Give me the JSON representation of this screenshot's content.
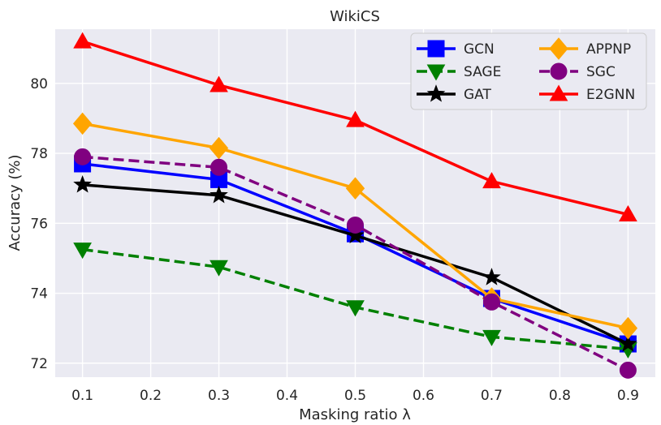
{
  "chart_data": {
    "type": "line",
    "title": "WikiCS",
    "xlabel": "Masking ratio λ",
    "ylabel": "Accuracy (%)",
    "xlim": [
      0.06,
      0.94
    ],
    "ylim": [
      71.6,
      81.55
    ],
    "x_ticks": [
      "0.1",
      "0.2",
      "0.3",
      "0.4",
      "0.5",
      "0.6",
      "0.7",
      "0.8",
      "0.9"
    ],
    "y_ticks": [
      "72",
      "74",
      "76",
      "78",
      "80"
    ],
    "grid": true,
    "legend_position": "top-right",
    "legend_columns": 2,
    "x": [
      0.1,
      0.3,
      0.5,
      0.7,
      0.9
    ],
    "series": [
      {
        "name": "GCN",
        "values": [
          77.7,
          77.25,
          75.7,
          73.85,
          72.55
        ],
        "color": "#0000ff",
        "marker": "square",
        "dash": "solid"
      },
      {
        "name": "SAGE",
        "values": [
          75.25,
          74.75,
          73.6,
          72.75,
          72.4
        ],
        "color": "#008000",
        "marker": "triangle-down",
        "dash": "dashed"
      },
      {
        "name": "GAT",
        "values": [
          77.1,
          76.8,
          75.65,
          74.45,
          72.55
        ],
        "color": "#000000",
        "marker": "star",
        "dash": "solid"
      },
      {
        "name": "APPNP",
        "values": [
          78.85,
          78.15,
          77.0,
          73.85,
          73.0
        ],
        "color": "#ffa500",
        "marker": "diamond",
        "dash": "solid"
      },
      {
        "name": "SGC",
        "values": [
          77.9,
          77.6,
          75.95,
          73.75,
          71.8
        ],
        "color": "#800080",
        "marker": "circle",
        "dash": "dashed"
      },
      {
        "name": "E2GNN",
        "values": [
          81.2,
          79.95,
          78.95,
          77.2,
          76.25
        ],
        "color": "#ff0000",
        "marker": "triangle-up",
        "dash": "solid"
      }
    ]
  }
}
